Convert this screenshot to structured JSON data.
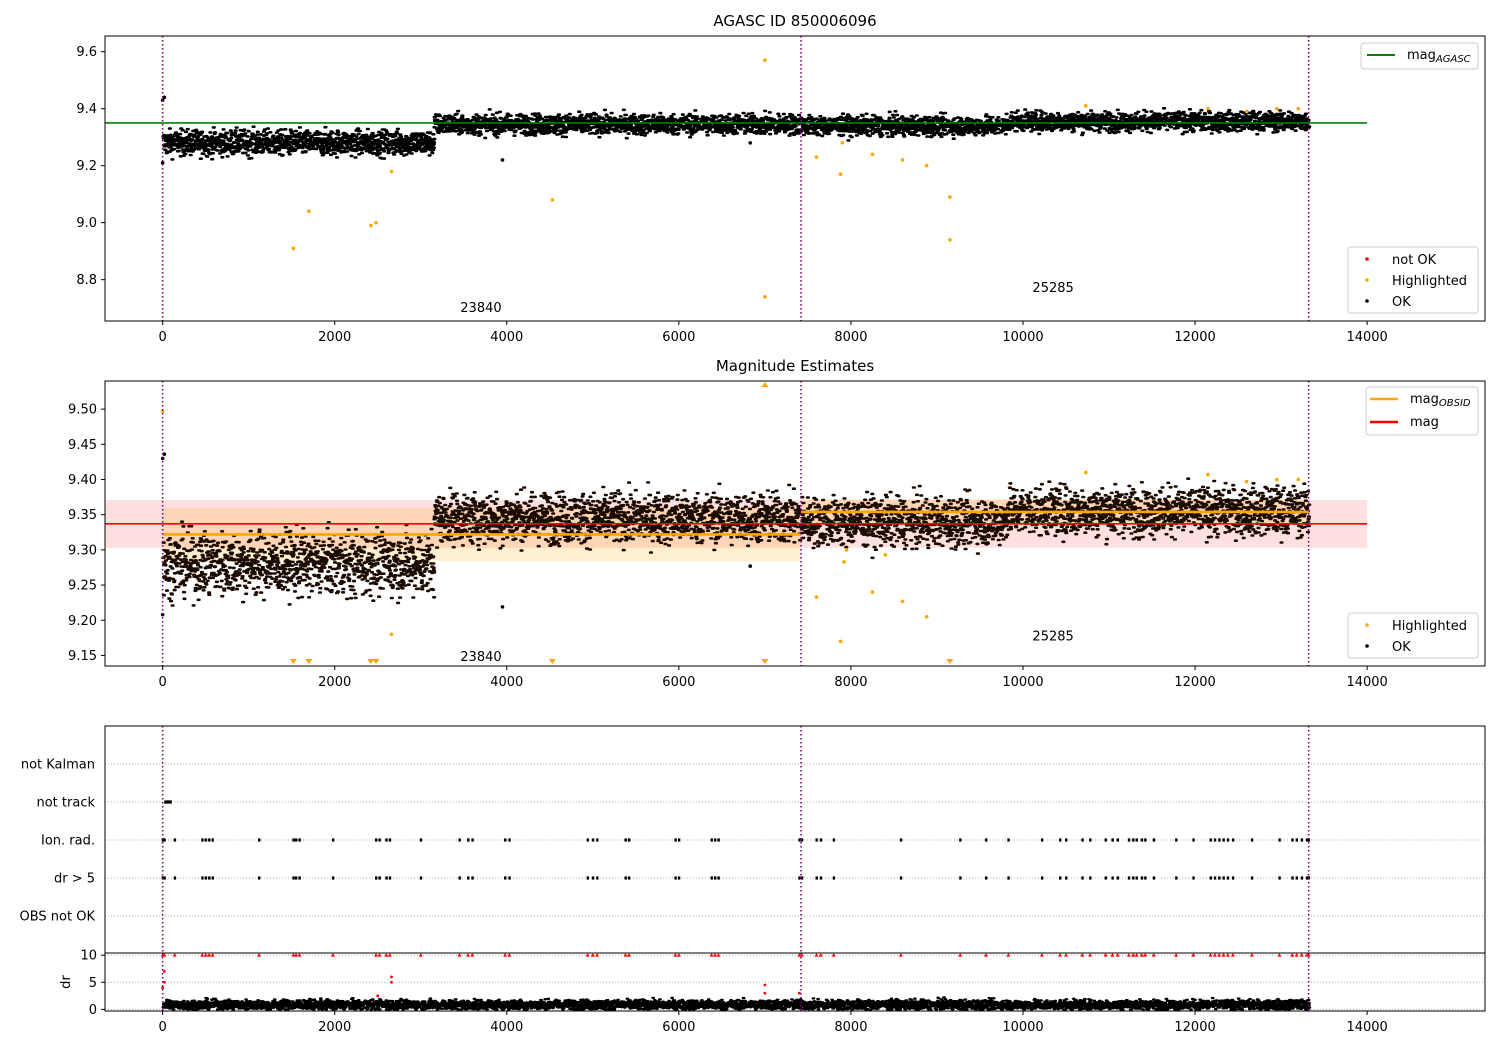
{
  "chart_data": [
    {
      "type": "scatter",
      "title": "AGASC ID 850006096",
      "xlim": [
        -670,
        15370
      ],
      "ylim": [
        8.655,
        9.655
      ],
      "xticks": [
        "0",
        "2000",
        "4000",
        "6000",
        "8000",
        "10000",
        "12000",
        "14000"
      ],
      "yticks": [
        "8.8",
        "9.0",
        "9.2",
        "9.4",
        "9.6"
      ],
      "xtick_values": [
        0,
        2000,
        4000,
        6000,
        8000,
        10000,
        12000,
        14000
      ],
      "ytick_values": [
        8.8,
        9.0,
        9.2,
        9.4,
        9.6
      ],
      "obsid_boundaries": [
        0,
        7420,
        13320
      ],
      "obsid_labels": [
        {
          "text": "23840",
          "x": 3700,
          "y": 8.7
        },
        {
          "text": "25285",
          "x": 10350,
          "y": 8.77
        }
      ],
      "reference_line": {
        "name": "mag_AGASC",
        "value": 9.35,
        "x_range": [
          -670,
          14000
        ],
        "color": "#008000"
      },
      "segments": [
        {
          "x_range": [
            0,
            3150
          ],
          "mean": 9.28,
          "spread": 0.022
        },
        {
          "x_range": [
            3150,
            7420
          ],
          "mean": 9.345,
          "spread": 0.018
        },
        {
          "x_range": [
            7420,
            9800
          ],
          "mean": 9.34,
          "spread": 0.017
        },
        {
          "x_range": [
            9800,
            13320
          ],
          "mean": 9.355,
          "spread": 0.017
        }
      ],
      "highlighted_points": [
        [
          1520,
          8.91
        ],
        [
          1700,
          9.04
        ],
        [
          2420,
          8.99
        ],
        [
          2480,
          9.0
        ],
        [
          2660,
          9.18
        ],
        [
          4530,
          9.08
        ],
        [
          7000,
          9.57
        ],
        [
          7000,
          8.74
        ],
        [
          7600,
          9.23
        ],
        [
          7880,
          9.17
        ],
        [
          7900,
          9.28
        ],
        [
          8250,
          9.24
        ],
        [
          8600,
          9.22
        ],
        [
          8880,
          9.2
        ],
        [
          9150,
          9.09
        ],
        [
          9150,
          8.94
        ],
        [
          10730,
          9.41
        ],
        [
          12150,
          9.4
        ],
        [
          12600,
          9.39
        ],
        [
          12950,
          9.4
        ],
        [
          13200,
          9.4
        ]
      ],
      "ok_outliers": [
        [
          0,
          9.43
        ],
        [
          20,
          9.44
        ],
        [
          0,
          9.21
        ],
        [
          3950,
          9.22
        ],
        [
          6830,
          9.28
        ]
      ],
      "legend": {
        "items": [
          "not OK",
          "Highlighted",
          "OK"
        ],
        "colors": [
          "#ff0000",
          "#ffa500",
          "#000000"
        ],
        "line_item": "mag_AGASC"
      }
    },
    {
      "type": "scatter",
      "title": "Magnitude Estimates",
      "xlim": [
        -670,
        15370
      ],
      "ylim": [
        9.135,
        9.54
      ],
      "xticks": [
        "0",
        "2000",
        "4000",
        "6000",
        "8000",
        "10000",
        "12000",
        "14000"
      ],
      "yticks": [
        "9.15",
        "9.20",
        "9.25",
        "9.30",
        "9.35",
        "9.40",
        "9.45",
        "9.50"
      ],
      "xtick_values": [
        0,
        2000,
        4000,
        6000,
        8000,
        10000,
        12000,
        14000
      ],
      "ytick_values": [
        9.15,
        9.2,
        9.25,
        9.3,
        9.35,
        9.4,
        9.45,
        9.5
      ],
      "obsid_boundaries": [
        0,
        7420,
        13320
      ],
      "obsid_labels": [
        {
          "text": "23840",
          "x": 3700,
          "y": 9.148
        },
        {
          "text": "25285",
          "x": 10350,
          "y": 9.177
        }
      ],
      "mag": {
        "value": 9.337,
        "band": [
          9.303,
          9.371
        ],
        "x_range": [
          -670,
          14000
        ],
        "color": "#ff0000"
      },
      "mag_obsid": [
        {
          "x_range": [
            0,
            7420
          ],
          "value": 9.322,
          "band": [
            9.284,
            9.36
          ]
        },
        {
          "x_range": [
            7420,
            13320
          ],
          "value": 9.354,
          "band": [
            9.335,
            9.372
          ]
        }
      ],
      "segments": [
        {
          "x_range": [
            0,
            3150
          ],
          "mean": 9.28,
          "spread": 0.022
        },
        {
          "x_range": [
            3150,
            7420
          ],
          "mean": 9.345,
          "spread": 0.018
        },
        {
          "x_range": [
            7420,
            9800
          ],
          "mean": 9.34,
          "spread": 0.017
        },
        {
          "x_range": [
            9800,
            13320
          ],
          "mean": 9.355,
          "spread": 0.017
        }
      ],
      "highlighted_points": [
        [
          0,
          9.497
        ],
        [
          2660,
          9.18
        ],
        [
          7600,
          9.233
        ],
        [
          7880,
          9.17
        ],
        [
          7920,
          9.283
        ],
        [
          7950,
          9.3
        ],
        [
          8250,
          9.24
        ],
        [
          8400,
          9.293
        ],
        [
          8600,
          9.227
        ],
        [
          8880,
          9.205
        ],
        [
          10730,
          9.41
        ],
        [
          12150,
          9.407
        ],
        [
          12600,
          9.397
        ],
        [
          12950,
          9.4
        ],
        [
          13200,
          9.4
        ]
      ],
      "clipped_low": [
        1520,
        1700,
        2420,
        2480,
        4530,
        7000,
        9150
      ],
      "clipped_high": [
        7000
      ],
      "ok_outliers": [
        [
          0,
          9.43
        ],
        [
          20,
          9.436
        ],
        [
          0,
          9.208
        ],
        [
          3950,
          9.219
        ],
        [
          6830,
          9.277
        ]
      ],
      "legend": {
        "items": [
          "Highlighted",
          "OK"
        ],
        "colors": [
          "#ffa500",
          "#000000"
        ],
        "line_items": [
          "mag_OBSID",
          "mag"
        ],
        "line_colors": [
          "#ffa500",
          "#ff0000"
        ]
      }
    },
    {
      "type": "scatter",
      "title": "",
      "xlim": [
        -670,
        15370
      ],
      "xticks": [
        "0",
        "2000",
        "4000",
        "6000",
        "8000",
        "10000",
        "12000",
        "14000"
      ],
      "xtick_values": [
        0,
        2000,
        4000,
        6000,
        8000,
        10000,
        12000,
        14000
      ],
      "obsid_boundaries": [
        0,
        7420,
        13320
      ],
      "flag_rows": [
        "not Kalman",
        "not track",
        "Ion. rad.",
        "dr > 5",
        "OBS not OK"
      ],
      "not_track_x": [
        30,
        45,
        60,
        75,
        90
      ],
      "event_x": [
        0,
        20,
        140,
        460,
        500,
        540,
        580,
        1120,
        1520,
        1550,
        1590,
        1980,
        2480,
        2520,
        2600,
        2640,
        3000,
        3450,
        3550,
        3600,
        3980,
        4030,
        4940,
        5000,
        5050,
        5380,
        5420,
        5960,
        6000,
        6380,
        6420,
        6460,
        7400,
        7430,
        7600,
        7650,
        7800,
        8580,
        9270,
        9570,
        9830,
        10220,
        10430,
        10500,
        10690,
        10780,
        10960,
        11040,
        11100,
        11230,
        11280,
        11320,
        11380,
        11420,
        11520,
        11780,
        11980,
        12180,
        12230,
        12280,
        12330,
        12380,
        12440,
        12660,
        12980,
        13130,
        13180,
        13240,
        13300,
        13320
      ],
      "dr_ylabel": "dr",
      "dr_yticks": [
        "0",
        "5",
        "10"
      ],
      "dr_ytick_values": [
        0,
        5,
        10
      ],
      "dr_ylim": [
        -0.3,
        10.4
      ],
      "dr_mean": 0.85,
      "dr_spikes": [
        [
          0,
          4
        ],
        [
          20,
          5
        ],
        [
          20,
          7
        ],
        [
          2660,
          5
        ],
        [
          2660,
          6
        ],
        [
          2500,
          2.5
        ],
        [
          7000,
          3
        ],
        [
          7000,
          4.5
        ],
        [
          7400,
          3
        ]
      ]
    }
  ]
}
